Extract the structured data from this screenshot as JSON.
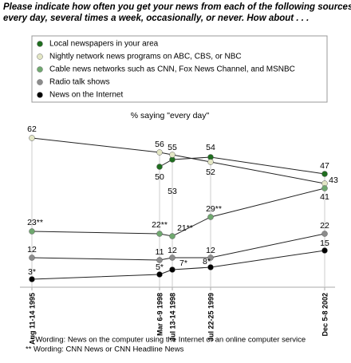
{
  "chart_data": {
    "type": "line",
    "title": [
      "Please indicate how often you get your news from each of the following sources,",
      "every day, several times a week, occasionally, or never.  How about . . ."
    ],
    "subtitle": "% saying \"every day\"",
    "categories": [
      "Aug 11-14 1995",
      "Mar 6-9 1998",
      "Jul 13-14 1998",
      "Jul 22-25 1999",
      "Dec 5-8 2002"
    ],
    "ylim": [
      0,
      62
    ],
    "series": [
      {
        "name": "Local newspapers in your area",
        "color": "#1f6e1f",
        "values": [
          null,
          50,
          53,
          54,
          47
        ]
      },
      {
        "name": "Nightly network news programs on ABC, CBS, or NBC",
        "color": "#e3e6c4",
        "values": [
          62,
          56,
          55,
          52,
          43
        ]
      },
      {
        "name": "Cable news networks such as CNN, Fox News Channel, and MSNBC",
        "color": "#6fa86f",
        "values": [
          23,
          22,
          21,
          29,
          41
        ],
        "value_labels": [
          "23**",
          "22**",
          "21**",
          "29**",
          "41"
        ]
      },
      {
        "name": "Radio talk shows",
        "color": "#8c8c8c",
        "values": [
          12,
          11,
          12,
          12,
          22
        ]
      },
      {
        "name": "News on the Internet",
        "color": "#000000",
        "values": [
          3,
          5,
          7,
          8,
          15
        ],
        "value_labels": [
          "3*",
          "5*",
          "7*",
          "8*",
          "15"
        ]
      }
    ],
    "footnotes": [
      "* Wording: News on the computer using the Internet or an online computer service",
      "** Wording: CNN News or CNN Headline News"
    ]
  }
}
